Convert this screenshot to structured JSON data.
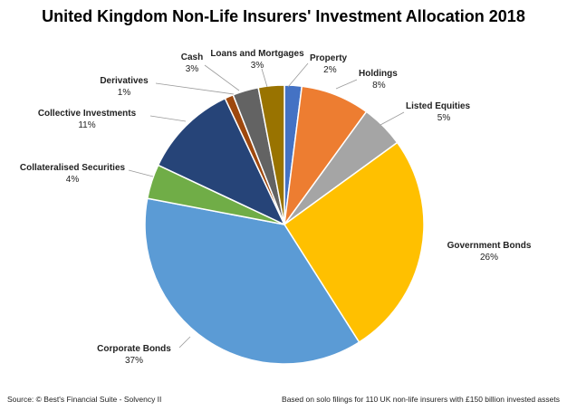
{
  "chart_data": {
    "type": "pie",
    "title": "United Kingdom Non-Life Insurers' Investment Allocation 2018",
    "start_angle_deg": 0,
    "direction": "clockwise",
    "slices": [
      {
        "label": "Property",
        "value": 2,
        "value_label": "2%",
        "color": "#4472c4"
      },
      {
        "label": "Holdings",
        "value": 8,
        "value_label": "8%",
        "color": "#ed7d31"
      },
      {
        "label": "Listed Equities",
        "value": 5,
        "value_label": "5%",
        "color": "#a5a5a5"
      },
      {
        "label": "Government Bonds",
        "value": 26,
        "value_label": "26%",
        "color": "#ffc000"
      },
      {
        "label": "Corporate Bonds",
        "value": 37,
        "value_label": "37%",
        "color": "#5b9bd5"
      },
      {
        "label": "Collateralised Securities",
        "value": 4,
        "value_label": "4%",
        "color": "#70ad47"
      },
      {
        "label": "Collective Investments",
        "value": 11,
        "value_label": "11%",
        "color": "#264478"
      },
      {
        "label": "Derivatives",
        "value": 1,
        "value_label": "1%",
        "color": "#9e480e"
      },
      {
        "label": "Cash",
        "value": 3,
        "value_label": "3%",
        "color": "#636363"
      },
      {
        "label": "Loans and Mortgages",
        "value": 3,
        "value_label": "3%",
        "color": "#997300"
      }
    ]
  },
  "footer": {
    "source": "Source: © Best's Financial Suite - Solvency II",
    "note": "Based on solo filings for 110 UK non-life insurers with £150 billion invested assets"
  }
}
